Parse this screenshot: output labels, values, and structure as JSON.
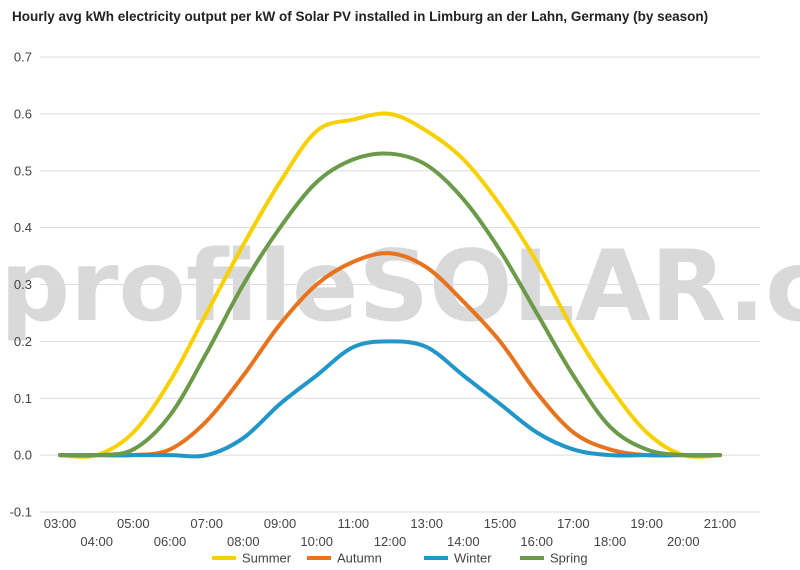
{
  "watermark": "profileSOLAR.com",
  "chart_data": {
    "type": "line",
    "title": "Hourly avg kWh electricity output per kW of Solar PV installed in Limburg an der Lahn, Germany (by season)",
    "xlabel": "",
    "ylabel": "",
    "ylim": [
      -0.1,
      0.7
    ],
    "yticks": [
      "-0.1",
      "0.0",
      "0.1",
      "0.2",
      "0.3",
      "0.4",
      "0.5",
      "0.6",
      "0.7"
    ],
    "x": [
      "03:00",
      "04:00",
      "05:00",
      "06:00",
      "07:00",
      "08:00",
      "09:00",
      "10:00",
      "11:00",
      "12:00",
      "13:00",
      "14:00",
      "15:00",
      "16:00",
      "17:00",
      "18:00",
      "19:00",
      "20:00",
      "21:00"
    ],
    "grid": true,
    "legend": "bottom",
    "series": [
      {
        "name": "Summer",
        "color": "#f7d000",
        "values": [
          0.0,
          0.0,
          0.04,
          0.13,
          0.25,
          0.37,
          0.48,
          0.57,
          0.59,
          0.6,
          0.57,
          0.52,
          0.44,
          0.34,
          0.22,
          0.12,
          0.04,
          0.0,
          0.0
        ]
      },
      {
        "name": "Autumn",
        "color": "#e8731e",
        "values": [
          0.0,
          0.0,
          0.0,
          0.01,
          0.06,
          0.14,
          0.23,
          0.3,
          0.34,
          0.355,
          0.33,
          0.27,
          0.2,
          0.11,
          0.04,
          0.01,
          0.0,
          0.0,
          0.0
        ]
      },
      {
        "name": "Winter",
        "color": "#2196c8",
        "values": [
          0.0,
          0.0,
          0.0,
          0.0,
          0.0,
          0.03,
          0.09,
          0.14,
          0.19,
          0.2,
          0.19,
          0.14,
          0.09,
          0.04,
          0.01,
          0.0,
          0.0,
          0.0,
          0.0
        ]
      },
      {
        "name": "Spring",
        "color": "#6b9a48",
        "values": [
          0.0,
          0.0,
          0.01,
          0.07,
          0.18,
          0.3,
          0.4,
          0.48,
          0.52,
          0.53,
          0.51,
          0.45,
          0.36,
          0.25,
          0.14,
          0.05,
          0.01,
          0.0,
          0.0
        ]
      }
    ]
  }
}
